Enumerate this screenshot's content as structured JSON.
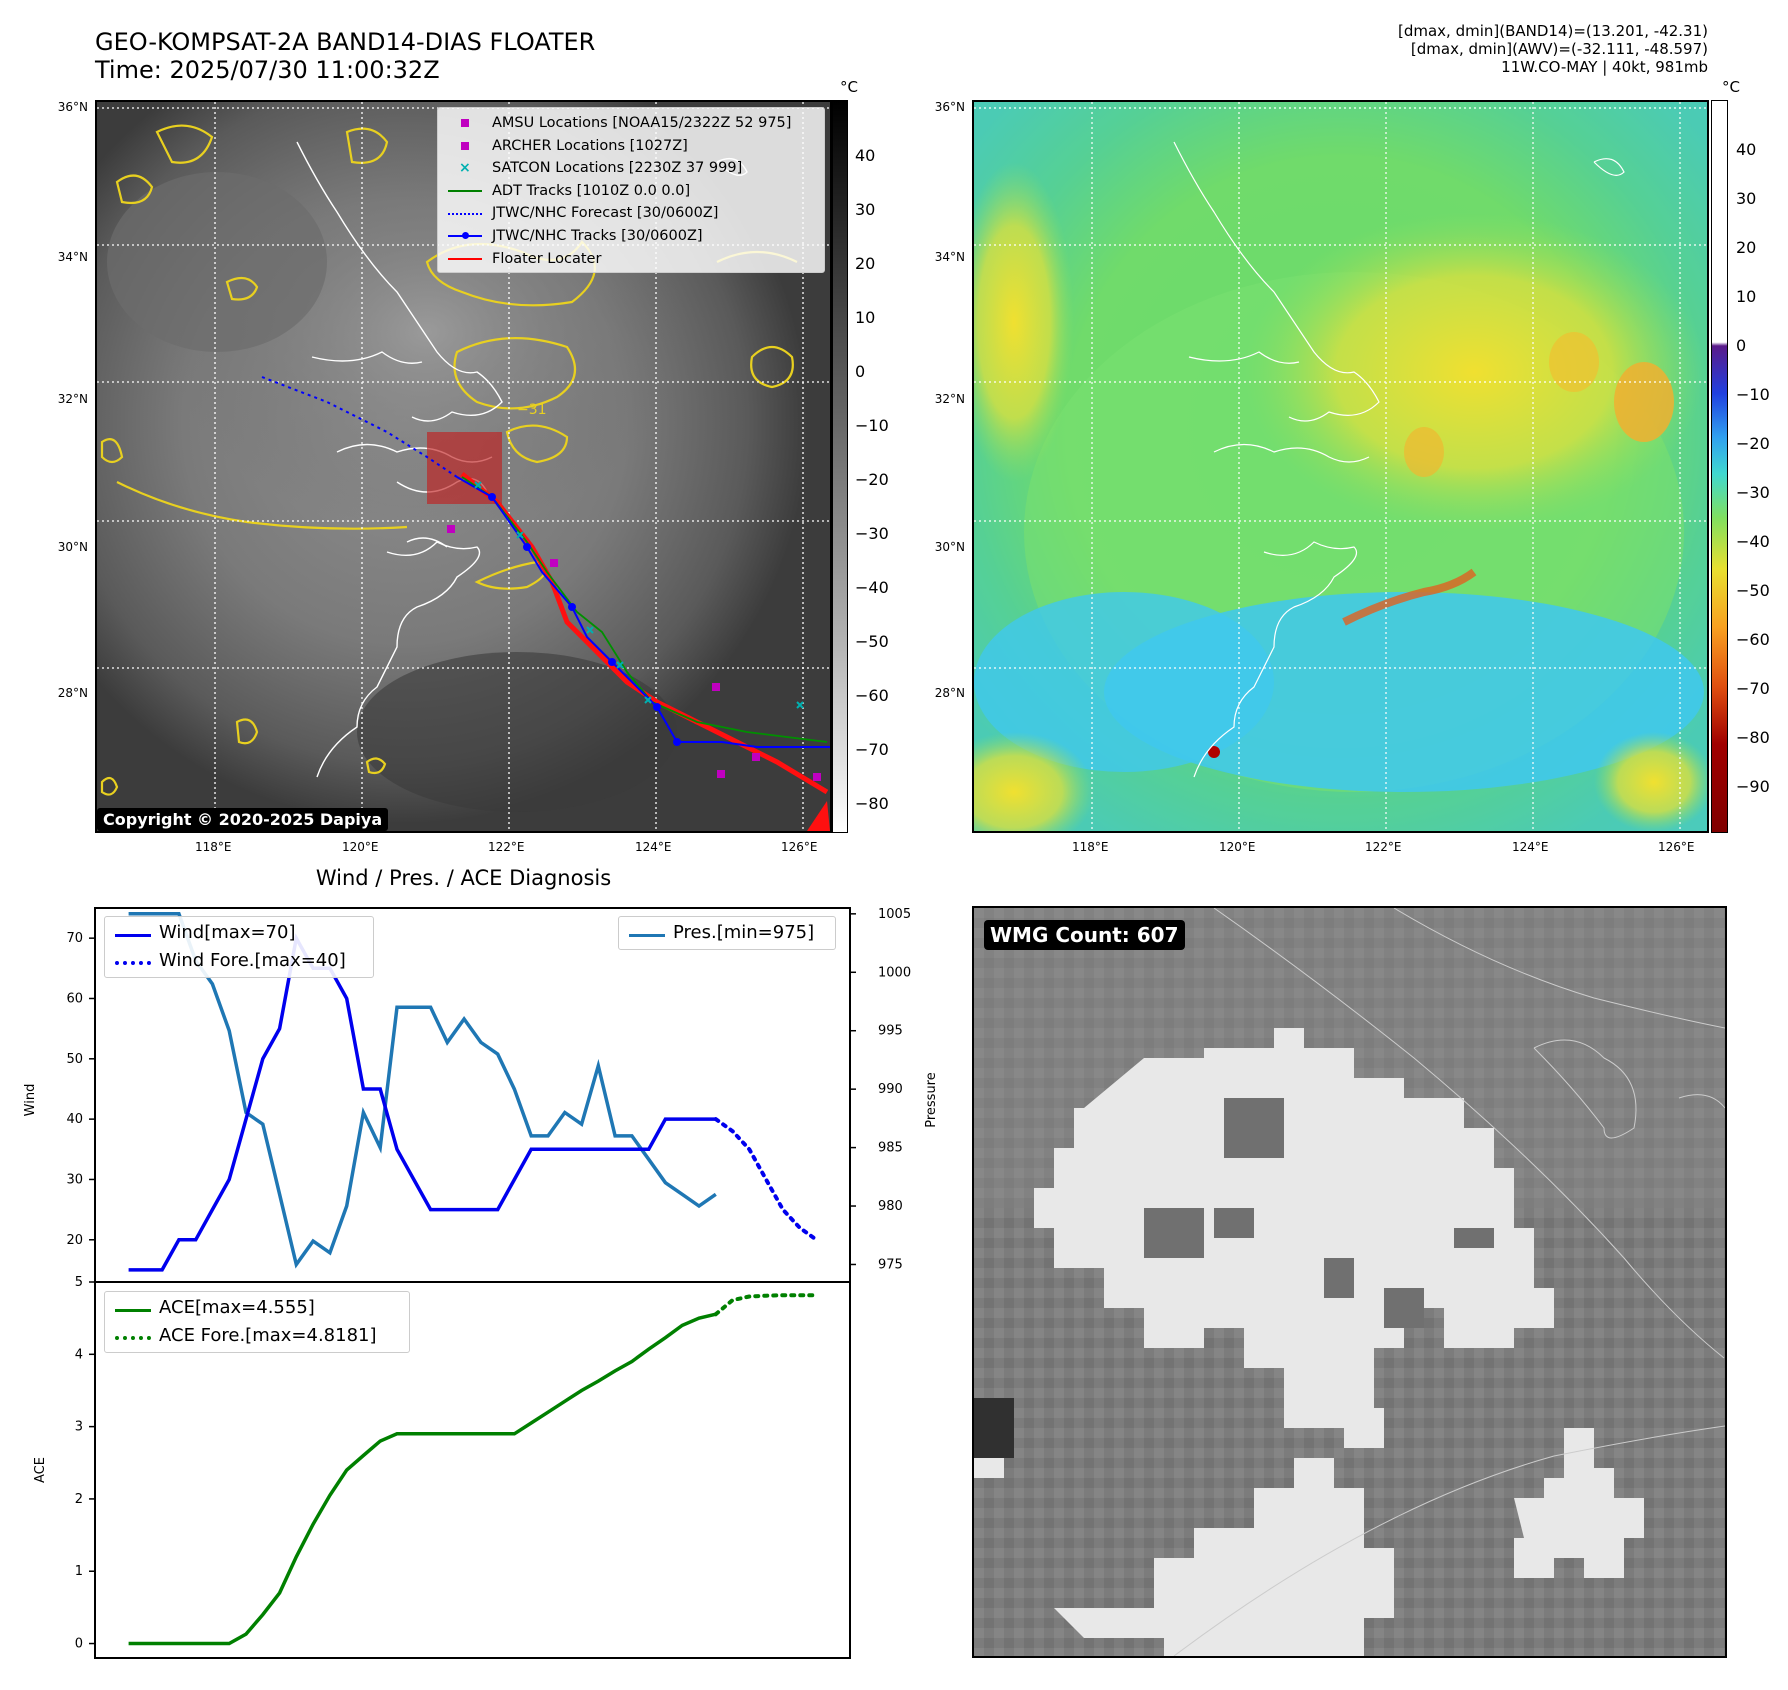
{
  "header": {
    "title_line1": "GEO-KOMPSAT-2A BAND14-DIAS FLOATER",
    "title_line2": "Time: 2025/07/30 11:00:32Z",
    "info_line1": "[dmax, dmin](BAND14)=(13.201, -42.31)",
    "info_line2": "[dmax, dmin](AWV)=(-32.111, -48.597)",
    "info_line3": "11W.CO-MAY | 40kt, 981mb"
  },
  "map_axes": {
    "lat_labels": [
      "36°N",
      "34°N",
      "32°N",
      "30°N",
      "28°N"
    ],
    "lon_labels": [
      "118°E",
      "120°E",
      "122°E",
      "124°E",
      "126°E"
    ]
  },
  "ir_panel": {
    "colorbar_unit": "°C",
    "colorbar_ticks": [
      "40",
      "30",
      "20",
      "10",
      "0",
      "−10",
      "−20",
      "−30",
      "−40",
      "−50",
      "−60",
      "−70",
      "−80"
    ],
    "contour_label": "−31",
    "copyright": "Copyright © 2020-2025 Dapiya",
    "legend": [
      {
        "label": "AMSU Locations [NOAA15/2322Z 52 975]",
        "marker": "square",
        "color": "#c000c0"
      },
      {
        "label": "ARCHER Locations [1027Z]",
        "marker": "square",
        "color": "#c000c0"
      },
      {
        "label": "SATCON Locations [2230Z 37 999]",
        "marker": "x",
        "color": "#00b0b0"
      },
      {
        "label": "ADT Tracks [1010Z 0.0 0.0]",
        "marker": "line",
        "color": "#008000"
      },
      {
        "label": "JTWC/NHC Forecast [30/0600Z]",
        "marker": "dotted",
        "color": "#0000ff"
      },
      {
        "label": "JTWC/NHC Tracks [30/0600Z]",
        "marker": "line-dot",
        "color": "#0000ff"
      },
      {
        "label": "Floater Locater",
        "marker": "line",
        "color": "#ff0000"
      }
    ]
  },
  "wv_panel": {
    "colorbar_unit": "°C",
    "colorbar_ticks": [
      "40",
      "30",
      "20",
      "10",
      "0",
      "−10",
      "−20",
      "−30",
      "−40",
      "−50",
      "−60",
      "−70",
      "−80",
      "−90"
    ]
  },
  "diag_panel": {
    "title": "Wind / Pres. / ACE Diagnosis",
    "wind_axis_label": "Wind",
    "pressure_axis_label": "Pressure",
    "ace_axis_label": "ACE",
    "legend_wind": "Wind[max=70]",
    "legend_wind_fore": "Wind Fore.[max=40]",
    "legend_pres": "Pres.[min=975]",
    "legend_ace": "ACE[max=4.555]",
    "legend_ace_fore": "ACE Fore.[max=4.8181]"
  },
  "wmg_panel": {
    "label": "WMG Count: 607"
  },
  "chart_data": [
    {
      "type": "line",
      "ylabel": "Wind",
      "ylim": [
        13,
        75
      ],
      "y_ticks": [
        20,
        30,
        40,
        50,
        60,
        70
      ],
      "series": [
        {
          "name": "Wind[max=70]",
          "color": "#0000ee",
          "style": "solid",
          "x": [
            0,
            1,
            2,
            3,
            4,
            5,
            6,
            7,
            8,
            9,
            10,
            11,
            12,
            13,
            14,
            15,
            16,
            17,
            18,
            19,
            20,
            21,
            22,
            23,
            24,
            25,
            26,
            27,
            28,
            29,
            30,
            31,
            32,
            33,
            34,
            35
          ],
          "values": [
            15,
            15,
            15,
            20,
            20,
            25,
            30,
            40,
            50,
            55,
            70,
            65,
            65,
            60,
            45,
            45,
            35,
            30,
            25,
            25,
            25,
            25,
            25,
            30,
            35,
            35,
            35,
            35,
            35,
            35,
            35,
            35,
            40,
            40,
            40,
            40
          ]
        },
        {
          "name": "Wind Fore.[max=40]",
          "color": "#0000ee",
          "style": "dotted",
          "x": [
            35,
            36,
            37,
            38,
            39,
            40,
            41
          ],
          "values": [
            40,
            38,
            35,
            30,
            25,
            22,
            20
          ]
        }
      ]
    },
    {
      "type": "line",
      "ylabel": "Pressure",
      "ylim": [
        973.5,
        1005.5
      ],
      "y_ticks": [
        975,
        980,
        985,
        990,
        995,
        1000,
        1005
      ],
      "series": [
        {
          "name": "Pres.[min=975]",
          "color": "#1f77b4",
          "style": "solid",
          "x": [
            0,
            1,
            2,
            3,
            4,
            5,
            6,
            7,
            8,
            9,
            10,
            11,
            12,
            13,
            14,
            15,
            16,
            17,
            18,
            19,
            20,
            21,
            22,
            23,
            24,
            25,
            26,
            27,
            28,
            29,
            30,
            31,
            32,
            33,
            34,
            35
          ],
          "values": [
            1005,
            1005,
            1005,
            1005,
            1001,
            999,
            995,
            988,
            987,
            981,
            975,
            977,
            976,
            980,
            988,
            985,
            997,
            997,
            997,
            994,
            996,
            994,
            993,
            990,
            986,
            986,
            988,
            987,
            992,
            986,
            986,
            984,
            982,
            981,
            980,
            981
          ]
        }
      ]
    },
    {
      "type": "line",
      "ylabel": "ACE",
      "ylim": [
        -0.2,
        5.0
      ],
      "y_ticks": [
        0,
        1,
        2,
        3,
        4,
        5
      ],
      "series": [
        {
          "name": "ACE[max=4.555]",
          "color": "#008000",
          "style": "solid",
          "x": [
            0,
            2,
            4,
            6,
            7,
            8,
            9,
            10,
            11,
            12,
            13,
            14,
            15,
            16,
            17,
            18,
            19,
            20,
            21,
            22,
            23,
            24,
            25,
            26,
            27,
            28,
            29,
            30,
            31,
            32,
            33,
            34,
            35
          ],
          "values": [
            0,
            0,
            0,
            0,
            0.13,
            0.4,
            0.7,
            1.2,
            1.65,
            2.05,
            2.4,
            2.6,
            2.8,
            2.9,
            2.9,
            2.9,
            2.9,
            2.9,
            2.9,
            2.9,
            2.9,
            3.05,
            3.2,
            3.35,
            3.5,
            3.63,
            3.77,
            3.9,
            4.07,
            4.23,
            4.4,
            4.5,
            4.555
          ]
        },
        {
          "name": "ACE Fore.[max=4.8181]",
          "color": "#008000",
          "style": "dotted",
          "x": [
            35,
            36,
            37,
            38,
            39,
            40,
            41
          ],
          "values": [
            4.555,
            4.75,
            4.8,
            4.81,
            4.8181,
            4.8181,
            4.8181
          ]
        }
      ]
    }
  ]
}
